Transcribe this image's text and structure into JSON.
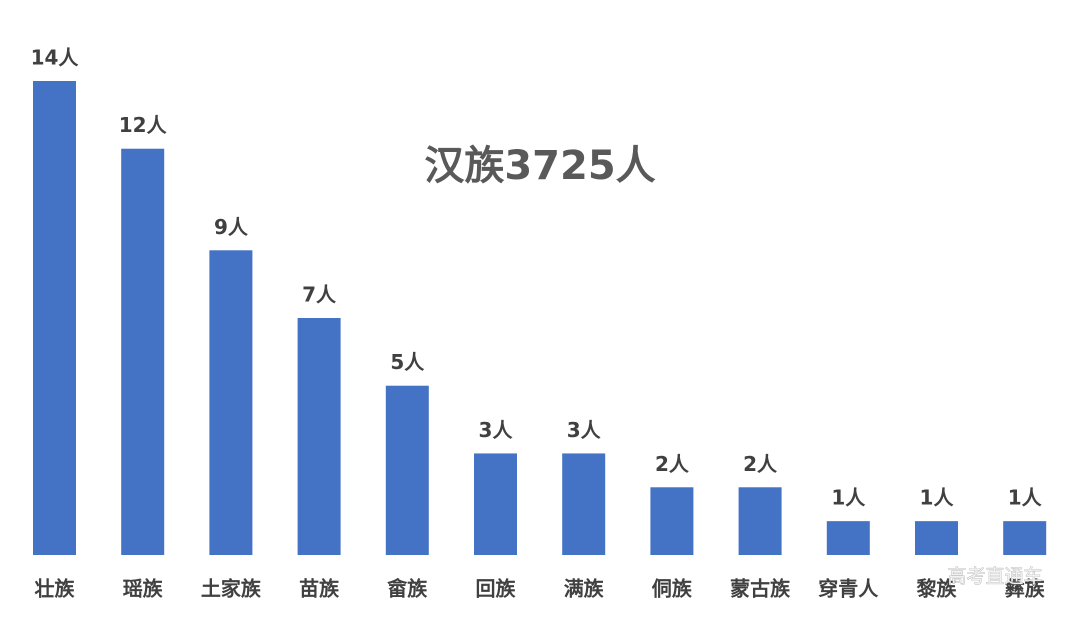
{
  "chart_data": {
    "type": "bar",
    "annotation": "汉族3725人",
    "categories": [
      "壮族",
      "瑶族",
      "土家族",
      "苗族",
      "畲族",
      "回族",
      "满族",
      "侗族",
      "蒙古族",
      "穿青人",
      "黎族",
      "彝族"
    ],
    "values": [
      14,
      12,
      9,
      7,
      5,
      3,
      3,
      2,
      2,
      1,
      1,
      1
    ],
    "value_labels": [
      "14人",
      "12人",
      "9人",
      "7人",
      "5人",
      "3人",
      "3人",
      "2人",
      "2人",
      "1人",
      "1人",
      "1人"
    ],
    "color": "#4472c4",
    "ylim": [
      0,
      14
    ]
  },
  "watermark": "高考直通车"
}
